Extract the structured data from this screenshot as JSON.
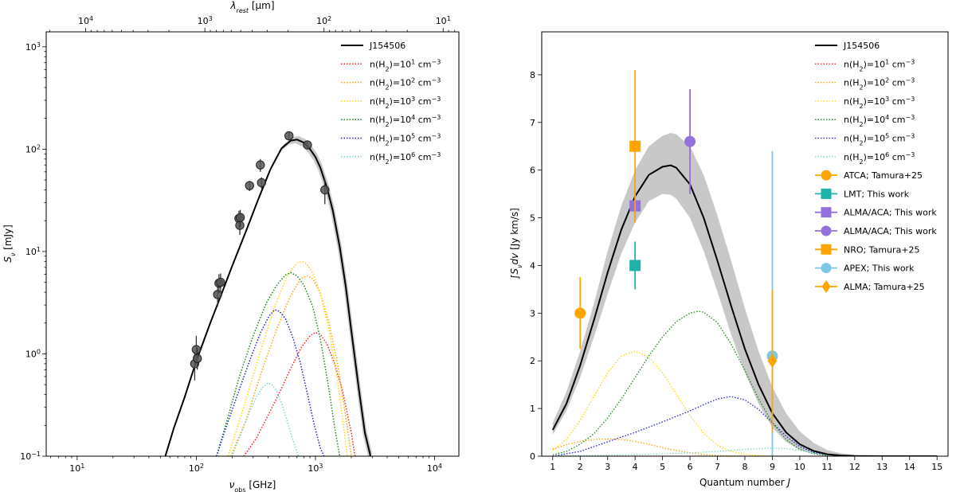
{
  "chart_data": [
    {
      "type": "scatter",
      "title": "",
      "xlabel": "ν_obs [GHz]",
      "ylabel": "S_ν [mJy]",
      "top_xlabel": "λ_rest [μm]",
      "xscale": "log",
      "yscale": "log",
      "xlim": [
        5.5,
        16000
      ],
      "ylim": [
        0.1,
        1400
      ],
      "x_ticks": [
        {
          "v": 10,
          "exp": "1"
        },
        {
          "v": 100,
          "exp": "2"
        },
        {
          "v": 1000,
          "exp": "3"
        },
        {
          "v": 10000,
          "exp": "4"
        }
      ],
      "y_ticks": [
        {
          "v": 0.1,
          "exp": "−1"
        },
        {
          "v": 1,
          "exp": "0"
        },
        {
          "v": 10,
          "exp": "1"
        },
        {
          "v": 100,
          "exp": "2"
        },
        {
          "v": 1000,
          "exp": "3"
        }
      ],
      "top_ticks": [
        {
          "lambda": 10000,
          "exp": "4"
        },
        {
          "lambda": 1000,
          "exp": "3"
        },
        {
          "lambda": 100,
          "exp": "2"
        },
        {
          "lambda": 10,
          "exp": "1"
        }
      ],
      "tick_base": "10",
      "legend_position": "upper right",
      "model": {
        "name": "J154506",
        "x": [
          55,
          65,
          80,
          100,
          130,
          165,
          200,
          260,
          330,
          420,
          520,
          620,
          700,
          800,
          900,
          1000,
          1100,
          1250,
          1400,
          1600,
          1800,
          2000,
          2300,
          2600,
          2900
        ],
        "y": [
          0.1,
          0.19,
          0.38,
          0.85,
          1.95,
          4.0,
          7.2,
          15.5,
          32,
          64,
          102,
          121,
          124,
          116,
          100,
          84,
          66,
          42,
          25,
          11,
          4.5,
          1.7,
          0.48,
          0.17,
          0.1
        ]
      },
      "observations": [
        {
          "x": 97,
          "y": 0.8,
          "err": [
            0.55,
            1.05
          ]
        },
        {
          "x": 100,
          "y": 1.1,
          "err": [
            0.85,
            1.5
          ]
        },
        {
          "x": 102,
          "y": 0.9,
          "err": [
            0.7,
            1.15
          ]
        },
        {
          "x": 151,
          "y": 3.8,
          "err": [
            2.9,
            4.7
          ]
        },
        {
          "x": 155,
          "y": 4.9,
          "err": [
            3.9,
            6.0
          ]
        },
        {
          "x": 160,
          "y": 5.0,
          "err": [
            4.0,
            6.1
          ]
        },
        {
          "x": 228,
          "y": 21,
          "err": [
            17,
            25
          ]
        },
        {
          "x": 232,
          "y": 18,
          "err": [
            14.5,
            21.5
          ]
        },
        {
          "x": 234,
          "y": 21.5,
          "err": [
            17.5,
            25.5
          ]
        },
        {
          "x": 280,
          "y": 44,
          "err": [
            39,
            49
          ]
        },
        {
          "x": 345,
          "y": 70,
          "err": [
            60,
            80
          ]
        },
        {
          "x": 353,
          "y": 47,
          "err": [
            41,
            53
          ]
        },
        {
          "x": 600,
          "y": 135,
          "err": [
            122,
            148
          ]
        },
        {
          "x": 857,
          "y": 110,
          "err": [
            100,
            120
          ]
        },
        {
          "x": 1200,
          "y": 40,
          "err": [
            29,
            51
          ]
        }
      ],
      "density_models": [
        {
          "name": "n(H2)=10^1 cm^-3",
          "label_exp": "1",
          "color": "#ff2020",
          "x": [
            250,
            320,
            400,
            500,
            620,
            760,
            900,
            1000,
            1100,
            1250,
            1450,
            1700,
            2000,
            2150
          ],
          "y": [
            0.1,
            0.15,
            0.25,
            0.42,
            0.72,
            1.15,
            1.5,
            1.62,
            1.55,
            1.25,
            0.8,
            0.42,
            0.17,
            0.1
          ]
        },
        {
          "name": "n(H2)=10^2 cm^-3",
          "label_exp": "2",
          "color": "#ffa500",
          "x": [
            195,
            260,
            350,
            470,
            610,
            750,
            850,
            950,
            1100,
            1300,
            1550,
            1800,
            2000
          ],
          "y": [
            0.1,
            0.22,
            0.65,
            1.7,
            3.6,
            5.4,
            5.8,
            5.4,
            3.9,
            2.0,
            0.75,
            0.24,
            0.1
          ]
        },
        {
          "name": "n(H2)=10^3 cm^-3",
          "label_exp": "3",
          "color": "#ffd700",
          "x": [
            185,
            250,
            340,
            450,
            580,
            700,
            770,
            840,
            950,
            1100,
            1300,
            1500,
            1700,
            1850
          ],
          "y": [
            0.1,
            0.3,
            1.0,
            2.8,
            5.8,
            7.7,
            8.0,
            7.6,
            6.2,
            3.9,
            1.7,
            0.65,
            0.22,
            0.1
          ]
        },
        {
          "name": "n(H2)=10^4 cm^-3",
          "label_exp": "4",
          "color": "#1a8a1a",
          "x": [
            148,
            180,
            230,
            300,
            390,
            480,
            560,
            620,
            700,
            800,
            950,
            1100,
            1300,
            1450,
            1600
          ],
          "y": [
            0.1,
            0.22,
            0.6,
            1.5,
            3.2,
            4.8,
            5.9,
            6.2,
            5.8,
            4.7,
            2.9,
            1.4,
            0.45,
            0.19,
            0.1
          ]
        },
        {
          "name": "n(H2)=10^5 cm^-3",
          "label_exp": "5",
          "color": "#2020d0",
          "x": [
            148,
            180,
            230,
            290,
            350,
            410,
            455,
            500,
            560,
            640,
            740,
            860,
            980,
            1100,
            1180
          ],
          "y": [
            0.1,
            0.2,
            0.45,
            0.95,
            1.65,
            2.35,
            2.7,
            2.6,
            2.2,
            1.5,
            0.85,
            0.4,
            0.2,
            0.12,
            0.1
          ]
        },
        {
          "name": "n(H2)=10^6 cm^-3",
          "label_exp": "6",
          "color": "#7fd8cf",
          "x": [
            200,
            240,
            280,
            320,
            360,
            400,
            430,
            470,
            520,
            580,
            640,
            720
          ],
          "y": [
            0.1,
            0.17,
            0.27,
            0.38,
            0.47,
            0.52,
            0.5,
            0.44,
            0.33,
            0.22,
            0.15,
            0.1
          ]
        }
      ]
    },
    {
      "type": "line",
      "title": "",
      "xlabel": "Quantum number J",
      "ylabel": "∫S_ν dv [Jy km/s]",
      "xlim": [
        0.6,
        15.4
      ],
      "ylim": [
        0,
        8.9
      ],
      "x_ticks": [
        1,
        2,
        3,
        4,
        5,
        6,
        7,
        8,
        9,
        10,
        11,
        12,
        13,
        14,
        15
      ],
      "y_ticks": [
        0,
        1,
        2,
        3,
        4,
        5,
        6,
        7,
        8
      ],
      "legend_position": "upper right",
      "model": {
        "name": "J154506",
        "x": [
          1,
          1.5,
          2,
          2.5,
          3,
          3.5,
          4,
          4.5,
          5,
          5.3,
          5.5,
          6,
          6.5,
          7,
          7.5,
          8,
          8.5,
          9,
          9.5,
          10,
          10.5,
          11,
          11.5,
          12,
          13,
          14,
          15
        ],
        "y": [
          0.55,
          1.1,
          1.9,
          2.85,
          3.85,
          4.75,
          5.45,
          5.9,
          6.07,
          6.1,
          6.05,
          5.7,
          5.0,
          4.1,
          3.15,
          2.25,
          1.5,
          0.9,
          0.5,
          0.25,
          0.11,
          0.04,
          0.015,
          0.005,
          0,
          0,
          0
        ],
        "band_low": [
          0.45,
          0.95,
          1.65,
          2.5,
          3.4,
          4.25,
          4.9,
          5.35,
          5.5,
          5.48,
          5.4,
          5.0,
          4.3,
          3.45,
          2.55,
          1.75,
          1.1,
          0.6,
          0.3,
          0.13,
          0.05,
          0.02,
          0.005,
          0,
          0,
          0,
          0
        ],
        "band_high": [
          0.7,
          1.35,
          2.2,
          3.2,
          4.3,
          5.25,
          6.0,
          6.5,
          6.72,
          6.78,
          6.75,
          6.5,
          5.9,
          5.05,
          4.1,
          3.1,
          2.2,
          1.45,
          0.9,
          0.52,
          0.28,
          0.13,
          0.06,
          0.025,
          0.005,
          0,
          0
        ]
      },
      "density_models": [
        {
          "name": "n(H2)=10^1 cm^-3",
          "label_exp": "1",
          "color": "#ff2020",
          "x": [
            1,
            15
          ],
          "y": [
            0,
            0
          ]
        },
        {
          "name": "n(H2)=10^2 cm^-3",
          "label_exp": "2",
          "color": "#ffa500",
          "x": [
            1,
            1.5,
            2,
            2.5,
            3,
            3.5,
            4,
            4.5,
            5,
            5.5,
            6,
            6.5,
            7,
            7.5,
            8
          ],
          "y": [
            0.15,
            0.24,
            0.31,
            0.35,
            0.36,
            0.35,
            0.31,
            0.25,
            0.18,
            0.12,
            0.07,
            0.035,
            0.015,
            0.005,
            0
          ]
        },
        {
          "name": "n(H2)=10^3 cm^-3",
          "label_exp": "3",
          "color": "#ffd700",
          "x": [
            1,
            1.5,
            2,
            2.5,
            3,
            3.5,
            4,
            4.5,
            5,
            5.5,
            6,
            6.5,
            7,
            7.5,
            8,
            8.5,
            9
          ],
          "y": [
            0.12,
            0.35,
            0.75,
            1.25,
            1.75,
            2.1,
            2.2,
            2.08,
            1.75,
            1.3,
            0.85,
            0.48,
            0.23,
            0.1,
            0.04,
            0.01,
            0
          ]
        },
        {
          "name": "n(H2)=10^4 cm^-3",
          "label_exp": "4",
          "color": "#1a8a1a",
          "x": [
            1,
            1.5,
            2,
            2.5,
            3,
            3.5,
            4,
            4.5,
            5,
            5.5,
            6,
            6.3,
            6.5,
            7,
            7.5,
            8,
            8.5,
            9,
            9.5,
            10,
            10.5,
            11
          ],
          "y": [
            0.03,
            0.1,
            0.25,
            0.47,
            0.8,
            1.2,
            1.65,
            2.1,
            2.5,
            2.82,
            3.0,
            3.04,
            3.02,
            2.8,
            2.35,
            1.8,
            1.2,
            0.7,
            0.35,
            0.14,
            0.05,
            0.01
          ]
        },
        {
          "name": "n(H2)=10^5 cm^-3",
          "label_exp": "5",
          "color": "#2020d0",
          "x": [
            1,
            2,
            3,
            4,
            5,
            6,
            6.5,
            7,
            7.5,
            8,
            8.5,
            9,
            9.5,
            10,
            10.5,
            11,
            11.5,
            12
          ],
          "y": [
            0,
            0.1,
            0.3,
            0.5,
            0.72,
            0.95,
            1.08,
            1.2,
            1.25,
            1.18,
            0.98,
            0.7,
            0.42,
            0.2,
            0.08,
            0.03,
            0.01,
            0
          ]
        },
        {
          "name": "n(H2)=10^6 cm^-3",
          "label_exp": "6",
          "color": "#7fd8cf",
          "x": [
            1,
            3,
            5,
            6,
            7,
            8,
            8.5,
            9,
            9.5,
            10,
            10.5,
            11,
            11.5,
            12
          ],
          "y": [
            0,
            0.02,
            0.05,
            0.07,
            0.1,
            0.14,
            0.16,
            0.17,
            0.16,
            0.12,
            0.07,
            0.03,
            0.01,
            0
          ]
        }
      ],
      "observations": [
        {
          "label": "ATCA; Tamura+25",
          "color": "#ffa500",
          "marker": "circle",
          "x": 2,
          "y": 3.0,
          "err": [
            2.25,
            3.75
          ]
        },
        {
          "label": "LMT; This work",
          "color": "#20b2aa",
          "marker": "square",
          "x": 4,
          "y": 4.0,
          "err": [
            3.5,
            4.5
          ]
        },
        {
          "label": "ALMA/ACA; This work",
          "color": "#9370db",
          "marker": "square",
          "x": 4,
          "y": 5.25,
          "err": [
            4.9,
            5.6
          ]
        },
        {
          "label": "ALMA/ACA; This work",
          "color": "#9370db",
          "marker": "circle",
          "x": 6,
          "y": 6.6,
          "err": [
            5.5,
            7.7
          ]
        },
        {
          "label": "NRO; Tamura+25",
          "color": "#ffa500",
          "marker": "square",
          "x": 4,
          "y": 6.5,
          "err": [
            4.9,
            8.1
          ]
        },
        {
          "label": "APEX; This work",
          "color": "#7ec8e3",
          "marker": "circle",
          "x": 9,
          "y": 2.1,
          "err": [
            0,
            6.4
          ]
        },
        {
          "label": "ALMA; Tamura+25",
          "color": "#ffa500",
          "marker": "diamond",
          "x": 9,
          "y": 2.0,
          "err": [
            0.5,
            3.5
          ]
        }
      ]
    }
  ]
}
